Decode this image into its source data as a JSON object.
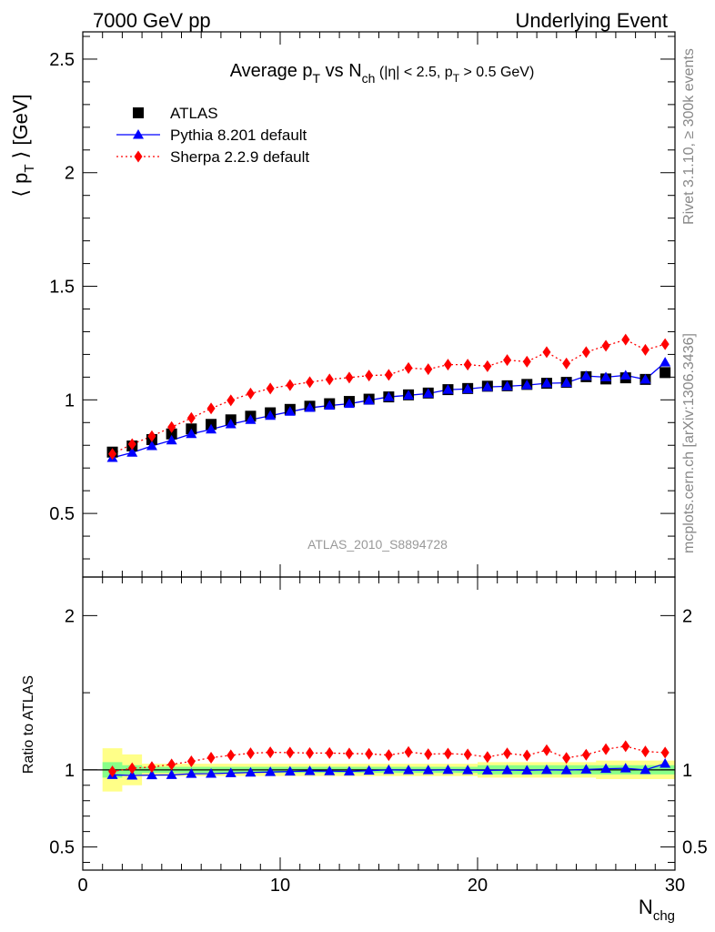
{
  "header": {
    "left": "7000 GeV pp",
    "right": "Underlying Event"
  },
  "side": {
    "rivet": "Rivet 3.1.10, ≥ 300k events",
    "mcplots": "mcplots.cern.ch [arXiv:1306.3436]"
  },
  "chart_data": {
    "type": "scatter",
    "title_parts": {
      "a": "Average p",
      "a_sub": "T",
      "b": " vs N",
      "b_sub": "ch",
      "c": " (|η| < 2.5, p",
      "c_sub": "T",
      "d": " > 0.5 GeV)"
    },
    "ylabel_parts": {
      "a": "⟨ p",
      "sub": "T",
      "b": " ⟩ [GeV]"
    },
    "ratio_ylabel": "Ratio to ATLAS",
    "xlabel_parts": {
      "a": "N",
      "sub": "chg"
    },
    "watermark": "ATLAS_2010_S8894728",
    "xlim": [
      0,
      30
    ],
    "ylim": [
      0.22,
      2.62
    ],
    "ratio_ylim": [
      0.35,
      2.25
    ],
    "x_ticks": [
      "0",
      "10",
      "20",
      "30"
    ],
    "y_ticks": [
      "0.5",
      "1",
      "1.5",
      "2",
      "2.5"
    ],
    "ratio_y_ticks": [
      "0.5",
      "1",
      "2"
    ],
    "legend_position": "top-left",
    "x": [
      1.5,
      2.5,
      3.5,
      4.5,
      5.5,
      6.5,
      7.5,
      8.5,
      9.5,
      10.5,
      11.5,
      12.5,
      13.5,
      14.5,
      15.5,
      16.5,
      17.5,
      18.5,
      19.5,
      20.5,
      21.5,
      22.5,
      23.5,
      24.5,
      25.5,
      26.5,
      27.5,
      28.5,
      29.5
    ],
    "series": [
      {
        "name": "ATLAS",
        "color": "#000000",
        "marker": "square",
        "values": [
          0.77,
          0.797,
          0.825,
          0.85,
          0.872,
          0.892,
          0.912,
          0.928,
          0.943,
          0.958,
          0.972,
          0.983,
          0.993,
          1.003,
          1.013,
          1.022,
          1.03,
          1.045,
          1.05,
          1.06,
          1.062,
          1.068,
          1.073,
          1.077,
          1.102,
          1.092,
          1.097,
          1.09,
          1.12
        ],
        "band_inner": [
          0.05,
          0.03,
          0.02,
          0.02,
          0.02,
          0.02,
          0.02,
          0.02,
          0.02,
          0.02,
          0.02,
          0.02,
          0.02,
          0.02,
          0.02,
          0.02,
          0.02,
          0.02,
          0.02,
          0.03,
          0.03,
          0.03,
          0.03,
          0.03,
          0.03,
          0.03,
          0.03,
          0.03,
          0.03
        ],
        "band_outer": [
          0.14,
          0.1,
          0.04,
          0.04,
          0.04,
          0.04,
          0.04,
          0.04,
          0.04,
          0.04,
          0.04,
          0.04,
          0.04,
          0.04,
          0.04,
          0.04,
          0.04,
          0.04,
          0.04,
          0.05,
          0.05,
          0.05,
          0.05,
          0.05,
          0.05,
          0.06,
          0.06,
          0.06,
          0.06
        ]
      },
      {
        "name": "Pythia 8.201 default",
        "color": "#0000ff",
        "marker": "triangle",
        "line": "solid",
        "values": [
          0.745,
          0.768,
          0.797,
          0.822,
          0.85,
          0.87,
          0.893,
          0.912,
          0.93,
          0.948,
          0.965,
          0.975,
          0.983,
          0.998,
          1.013,
          1.02,
          1.028,
          1.045,
          1.048,
          1.057,
          1.06,
          1.065,
          1.073,
          1.075,
          1.105,
          1.1,
          1.108,
          1.09,
          1.165
        ]
      },
      {
        "name": "Sherpa 2.2.9 default",
        "color": "#ff0000",
        "marker": "diamond",
        "line": "dotted",
        "values": [
          0.762,
          0.805,
          0.84,
          0.88,
          0.92,
          0.962,
          0.998,
          1.028,
          1.05,
          1.065,
          1.078,
          1.09,
          1.098,
          1.107,
          1.11,
          1.14,
          1.135,
          1.155,
          1.155,
          1.148,
          1.175,
          1.168,
          1.21,
          1.16,
          1.21,
          1.238,
          1.265,
          1.22,
          1.245
        ]
      }
    ]
  }
}
